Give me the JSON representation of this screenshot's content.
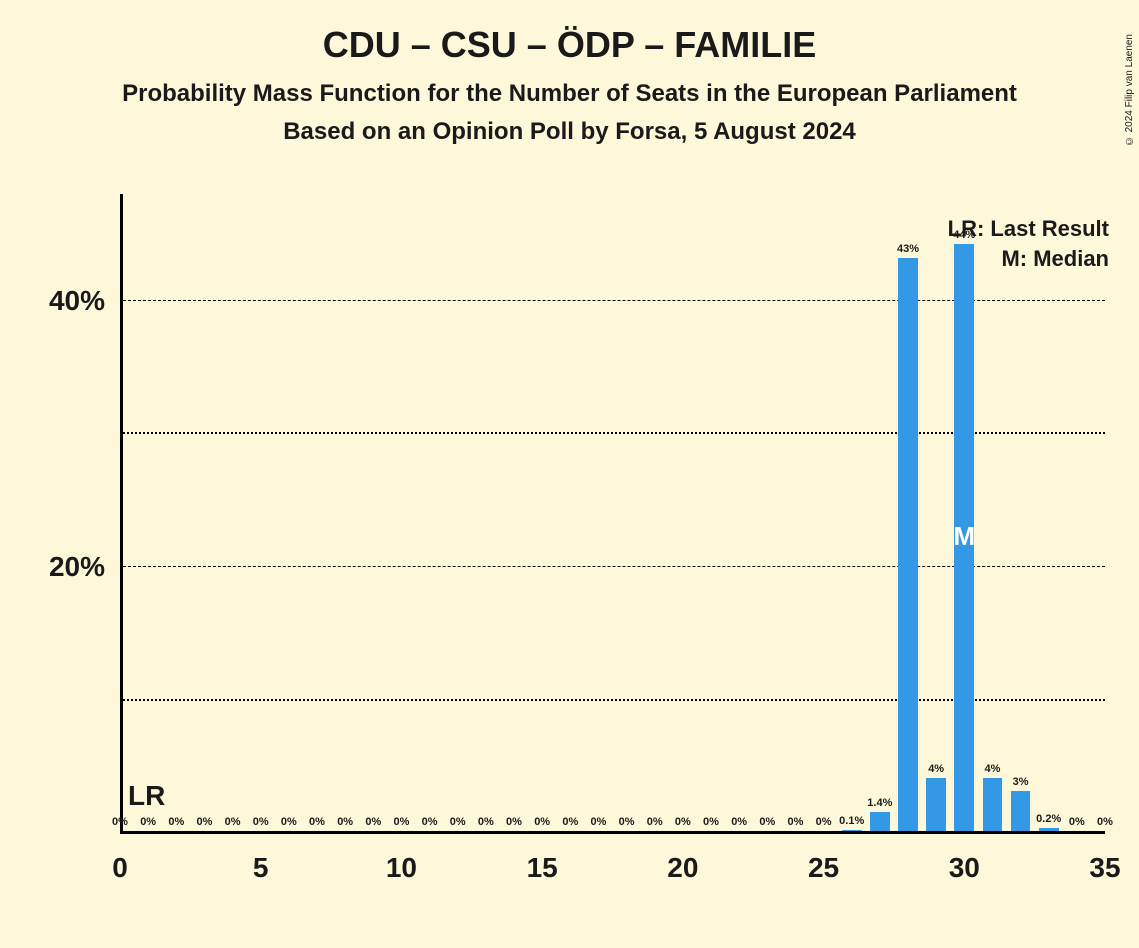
{
  "title": "CDU – CSU – ÖDP – FAMILIE",
  "subtitle1": "Probability Mass Function for the Number of Seats in the European Parliament",
  "subtitle2": "Based on an Opinion Poll by Forsa, 5 August 2024",
  "legend_lr": "LR: Last Result",
  "legend_m": "M: Median",
  "copyright": "© 2024 Filip van Laenen",
  "chart": {
    "type": "bar",
    "background_color": "#fdf8d9",
    "bar_color": "#3399e6",
    "text_color": "#1a1a1a",
    "x_min": 0,
    "x_max": 35,
    "x_tick_step": 5,
    "x_ticks": [
      0,
      5,
      10,
      15,
      20,
      25,
      30,
      35
    ],
    "y_min": 0,
    "y_max": 45,
    "y_ticks_major": [
      20,
      40
    ],
    "y_ticks_minor": [
      10,
      30
    ],
    "y_tick_labels": {
      "20": "20%",
      "40": "40%"
    },
    "bar_width": 0.7,
    "lr_position": 0,
    "median_position": 30,
    "lr_text": "LR",
    "m_text": "M",
    "data": [
      {
        "x": 0,
        "value": 0,
        "label": "0%"
      },
      {
        "x": 1,
        "value": 0,
        "label": "0%"
      },
      {
        "x": 2,
        "value": 0,
        "label": "0%"
      },
      {
        "x": 3,
        "value": 0,
        "label": "0%"
      },
      {
        "x": 4,
        "value": 0,
        "label": "0%"
      },
      {
        "x": 5,
        "value": 0,
        "label": "0%"
      },
      {
        "x": 6,
        "value": 0,
        "label": "0%"
      },
      {
        "x": 7,
        "value": 0,
        "label": "0%"
      },
      {
        "x": 8,
        "value": 0,
        "label": "0%"
      },
      {
        "x": 9,
        "value": 0,
        "label": "0%"
      },
      {
        "x": 10,
        "value": 0,
        "label": "0%"
      },
      {
        "x": 11,
        "value": 0,
        "label": "0%"
      },
      {
        "x": 12,
        "value": 0,
        "label": "0%"
      },
      {
        "x": 13,
        "value": 0,
        "label": "0%"
      },
      {
        "x": 14,
        "value": 0,
        "label": "0%"
      },
      {
        "x": 15,
        "value": 0,
        "label": "0%"
      },
      {
        "x": 16,
        "value": 0,
        "label": "0%"
      },
      {
        "x": 17,
        "value": 0,
        "label": "0%"
      },
      {
        "x": 18,
        "value": 0,
        "label": "0%"
      },
      {
        "x": 19,
        "value": 0,
        "label": "0%"
      },
      {
        "x": 20,
        "value": 0,
        "label": "0%"
      },
      {
        "x": 21,
        "value": 0,
        "label": "0%"
      },
      {
        "x": 22,
        "value": 0,
        "label": "0%"
      },
      {
        "x": 23,
        "value": 0,
        "label": "0%"
      },
      {
        "x": 24,
        "value": 0,
        "label": "0%"
      },
      {
        "x": 25,
        "value": 0,
        "label": "0%"
      },
      {
        "x": 26,
        "value": 0.1,
        "label": "0.1%"
      },
      {
        "x": 27,
        "value": 1.4,
        "label": "1.4%"
      },
      {
        "x": 28,
        "value": 43,
        "label": "43%"
      },
      {
        "x": 29,
        "value": 4,
        "label": "4%"
      },
      {
        "x": 30,
        "value": 44,
        "label": "44%"
      },
      {
        "x": 31,
        "value": 4,
        "label": "4%"
      },
      {
        "x": 32,
        "value": 3,
        "label": "3%"
      },
      {
        "x": 33,
        "value": 0.2,
        "label": "0.2%"
      },
      {
        "x": 34,
        "value": 0,
        "label": "0%"
      },
      {
        "x": 35,
        "value": 0,
        "label": "0%"
      }
    ]
  }
}
